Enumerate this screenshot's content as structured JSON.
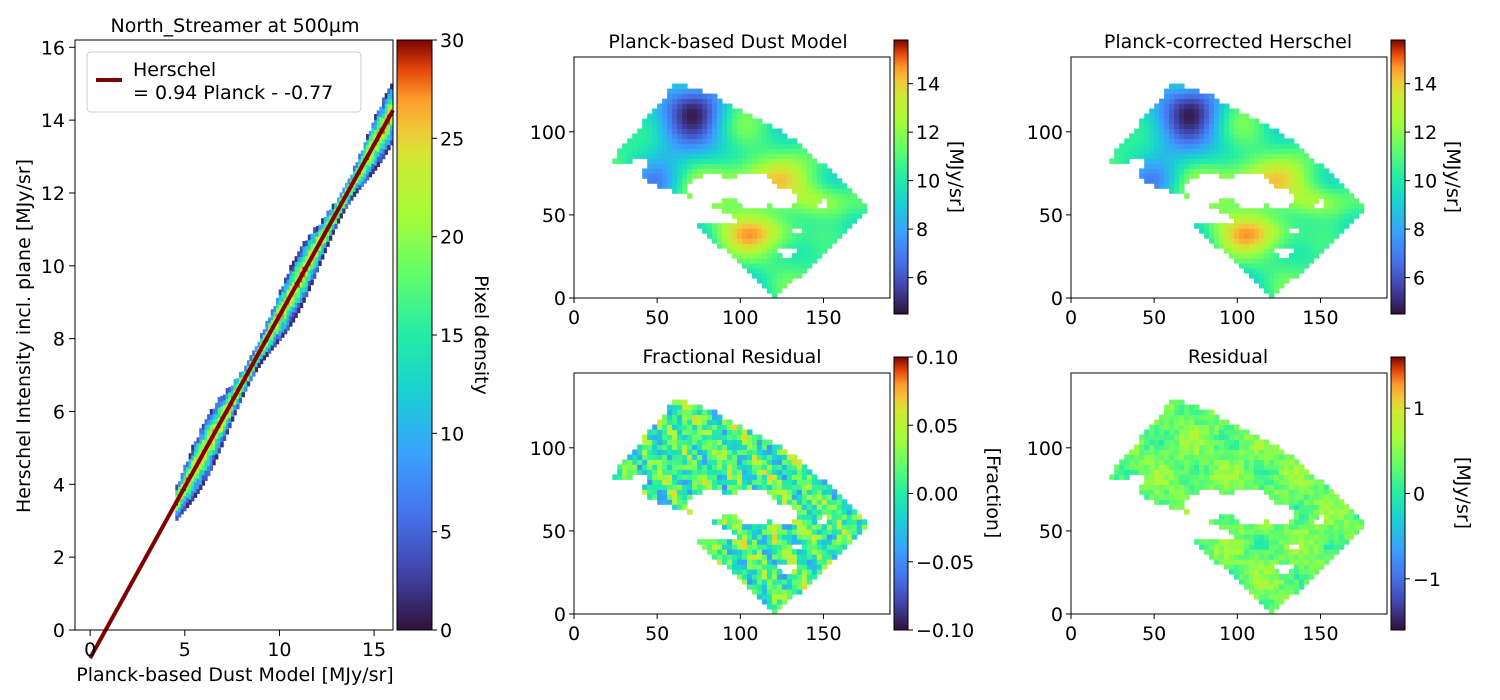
{
  "chart_data": [
    {
      "type": "heatmap",
      "title": "North_Streamer at 500µm",
      "xlabel": "Planck-based Dust Model [MJy/sr]",
      "ylabel": "Herschel Intensity incl. plane [MJy/sr]",
      "xlim": [
        -0.8,
        16
      ],
      "ylim": [
        0,
        16.2
      ],
      "xticks": [
        "0",
        "5",
        "10",
        "15"
      ],
      "yticks": [
        "0",
        "2",
        "4",
        "6",
        "8",
        "10",
        "12",
        "14",
        "16"
      ],
      "density_cloud": {
        "x_range": [
          4.5,
          16
        ],
        "slope": 0.94,
        "intercept": -0.77
      },
      "fit_line": {
        "slope": 0.94,
        "intercept": -0.77,
        "x_range": [
          0,
          16
        ],
        "color": "#800000"
      },
      "legend": {
        "line1": "Herschel",
        "line2": "= 0.94 Planck - -0.77",
        "position": "top-left"
      },
      "colorbar": {
        "label": "Pixel density",
        "range": [
          0,
          30
        ],
        "ticks": [
          "0",
          "5",
          "10",
          "15",
          "20",
          "25",
          "30"
        ],
        "colormap": "turbo"
      }
    },
    {
      "type": "heatmap",
      "title": "Planck-based Dust Model",
      "xlim": [
        0,
        190
      ],
      "ylim": [
        0,
        145
      ],
      "xticks": [
        "0",
        "50",
        "100",
        "150"
      ],
      "yticks": [
        "0",
        "50",
        "100"
      ],
      "colorbar": {
        "label": "[MJy/sr]",
        "range": [
          4.5,
          15.8
        ],
        "ticks": [
          "6",
          "8",
          "10",
          "12",
          "14"
        ],
        "colormap": "turbo"
      }
    },
    {
      "type": "heatmap",
      "title": "Planck-corrected Herschel",
      "xlim": [
        0,
        190
      ],
      "ylim": [
        0,
        145
      ],
      "xticks": [
        "0",
        "50",
        "100",
        "150"
      ],
      "yticks": [
        "0",
        "50",
        "100"
      ],
      "colorbar": {
        "label": "[MJy/sr]",
        "range": [
          4.5,
          15.8
        ],
        "ticks": [
          "6",
          "8",
          "10",
          "12",
          "14"
        ],
        "colormap": "turbo"
      }
    },
    {
      "type": "heatmap",
      "title": "Fractional Residual",
      "xlim": [
        0,
        190
      ],
      "ylim": [
        0,
        145
      ],
      "xticks": [
        "0",
        "50",
        "100",
        "150"
      ],
      "yticks": [
        "0",
        "50",
        "100"
      ],
      "colorbar": {
        "label": "[Fraction]",
        "range": [
          -0.1,
          0.1
        ],
        "ticks": [
          "−0.10",
          "−0.05",
          "0.00",
          "0.05",
          "0.10"
        ],
        "colormap": "turbo"
      }
    },
    {
      "type": "heatmap",
      "title": "Residual",
      "xlim": [
        0,
        190
      ],
      "ylim": [
        0,
        145
      ],
      "xticks": [
        "0",
        "50",
        "100",
        "150"
      ],
      "yticks": [
        "0",
        "50",
        "100"
      ],
      "colorbar": {
        "label": "[MJy/sr]",
        "range": [
          -1.6,
          1.6
        ],
        "ticks": [
          "−1",
          "0",
          "1"
        ],
        "colormap": "turbo"
      }
    }
  ]
}
